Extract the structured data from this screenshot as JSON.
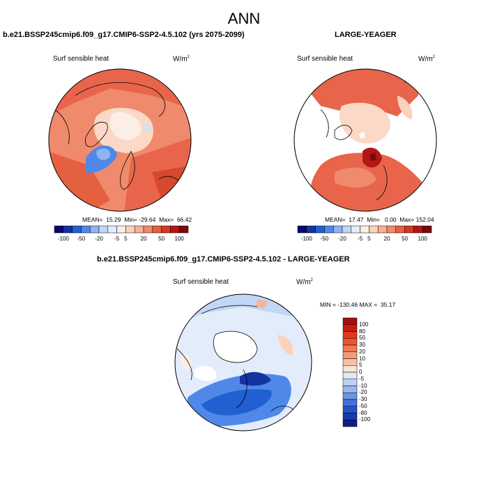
{
  "title": "ANN",
  "colors": {
    "ocean_light": "#fbd9c6",
    "ocean_mid": "#f4a582",
    "ocean_strong": "#e8654b",
    "ocean_deep": "#d6492f",
    "ice_blue": "#6f93e0",
    "ice_light": "#cfe2f6",
    "diff_blue": "#3b6fd6",
    "diff_light": "#dce9fa",
    "land": "#ffffff",
    "coast": "#000000"
  },
  "panels": [
    {
      "title": "b.e21.BSSP245cmip6.f09_g17.CMIP6-SSP2-4.5.102 (yrs 2075-2099)",
      "variable": "Surf sensible heat",
      "units": "W/m",
      "units_exp": "2",
      "stats": "MEAN=  15.29  Min= -29.64  Max=  66.42"
    },
    {
      "title": "LARGE-YEAGER",
      "variable": "Surf sensible heat",
      "units": "W/m",
      "units_exp": "2",
      "stats": "MEAN=  17.47  Min=   0.00  Max= 152.04"
    },
    {
      "title": "b.e21.BSSP245cmip6.f09_g17.CMIP6-SSP2-4.5.102 - LARGE-YEAGER",
      "variable": "Surf sensible heat",
      "units": "W/m",
      "units_exp": "2",
      "stats": "MIN = -130.46 MAX =  35.17"
    }
  ],
  "colorbar_h": {
    "labels": [
      "-100",
      "-50",
      "-20",
      "-5",
      "5",
      "20",
      "50",
      "100"
    ],
    "colors": [
      "#08086b",
      "#1432a0",
      "#2060d0",
      "#4f88e8",
      "#8fb4f0",
      "#c2d6f5",
      "#e3ecfa",
      "#fbeee6",
      "#fbd2bc",
      "#f7b197",
      "#f08a6c",
      "#e5603f",
      "#d03a22",
      "#b01818",
      "#7a0808"
    ]
  },
  "colorbar_v": {
    "labels": [
      "100",
      "80",
      "50",
      "30",
      "20",
      "10",
      "5",
      "0",
      "-5",
      "-10",
      "-20",
      "-30",
      "-50",
      "-80",
      "-100"
    ],
    "colors": [
      "#a40f0f",
      "#cc1a12",
      "#e0381e",
      "#ea5530",
      "#ef7a52",
      "#f49a78",
      "#f8bfa4",
      "#fbe3d4",
      "#dde8f8",
      "#bcd1f3",
      "#98b8ee",
      "#6c94e2",
      "#4470d8",
      "#2a4fc8",
      "#173aae",
      "#0c1f80"
    ]
  }
}
